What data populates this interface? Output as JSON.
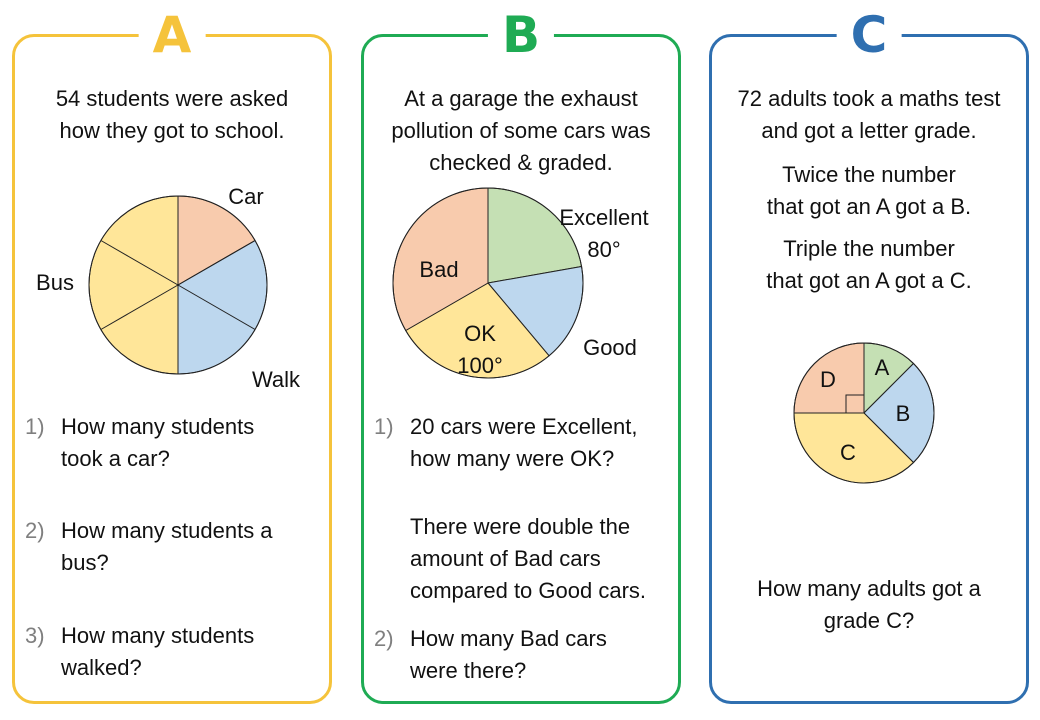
{
  "chart_data": [
    {
      "type": "pie",
      "title": "",
      "panel_letter": "A",
      "intro": [
        "54 students were asked",
        "how they got to school."
      ],
      "total": 54,
      "slices": [
        {
          "label": "Car",
          "degrees": 60,
          "color": "#f8cbad"
        },
        {
          "label": "Walk",
          "degrees": 120,
          "color": "#bdd7ee"
        },
        {
          "label": "Bus",
          "degrees": 180,
          "color": "#ffe699"
        }
      ],
      "divisions": 6,
      "questions": [
        {
          "num": "1)",
          "text": "How many students took a car?"
        },
        {
          "num": "2)",
          "text": "How many students a bus?"
        },
        {
          "num": "3)",
          "text": "How many students walked?"
        }
      ]
    },
    {
      "type": "pie",
      "title": "",
      "panel_letter": "B",
      "intro": [
        "At a garage the exhaust",
        "pollution of some cars was",
        "checked & graded."
      ],
      "slices": [
        {
          "label": "Excellent",
          "degrees": 80,
          "angle_label": "80°",
          "color": "#c5e0b4"
        },
        {
          "label": "Good",
          "degrees": 60,
          "color": "#bdd7ee"
        },
        {
          "label": "OK",
          "degrees": 100,
          "angle_label": "100°",
          "color": "#ffe699"
        },
        {
          "label": "Bad",
          "degrees": 120,
          "color": "#f8cbad"
        }
      ],
      "questions": [
        {
          "num": "1)",
          "text": "20 cars were Excellent, how many were OK?"
        },
        {
          "num": "",
          "text": "There were double the amount of Bad cars compared to Good cars."
        },
        {
          "num": "2)",
          "text": "How many Bad cars were there?"
        }
      ]
    },
    {
      "type": "pie",
      "title": "",
      "panel_letter": "C",
      "intro": [
        "72 adults took a maths test",
        "and got a letter grade."
      ],
      "statements": [
        [
          "Twice the number",
          "that got an A got a B."
        ],
        [
          "Triple the number",
          "that got an A got a C."
        ]
      ],
      "total": 72,
      "slices": [
        {
          "label": "A",
          "degrees": 45,
          "color": "#c5e0b4"
        },
        {
          "label": "B",
          "degrees": 90,
          "color": "#bdd7ee"
        },
        {
          "label": "C",
          "degrees": 135,
          "color": "#ffe699"
        },
        {
          "label": "D",
          "degrees": 90,
          "color": "#f8cbad"
        }
      ],
      "question": [
        "How many adults got a",
        "grade C?"
      ]
    }
  ]
}
